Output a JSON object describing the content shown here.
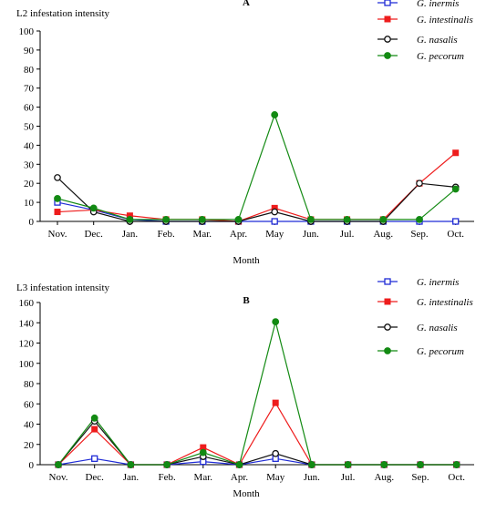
{
  "chart_data": [
    {
      "type": "line",
      "panel_label": "A",
      "ylabel": "L2 infestation intensity",
      "xlabel": "Month",
      "categories": [
        "Nov.",
        "Dec.",
        "Jan.",
        "Feb.",
        "Mar.",
        "Apr.",
        "May",
        "Jun.",
        "Jul.",
        "Aug.",
        "Sep.",
        "Oct."
      ],
      "ylim": [
        0,
        100
      ],
      "yticks": [
        0,
        10,
        20,
        30,
        40,
        50,
        60,
        70,
        80,
        90,
        100
      ],
      "legend_position": "top-right",
      "series": [
        {
          "name": "G. inermis",
          "color": "#1f2bd6",
          "marker": "open-square",
          "values": [
            10,
            6,
            1,
            0,
            0,
            0,
            0,
            0,
            0,
            0,
            0,
            0
          ]
        },
        {
          "name": "G. intestinalis",
          "color": "#ee1c1c",
          "marker": "filled-square",
          "values": [
            5,
            6,
            3,
            1,
            1,
            0,
            7,
            1,
            1,
            1,
            20,
            36
          ]
        },
        {
          "name": "G. nasalis",
          "color": "#111111",
          "marker": "open-circle",
          "values": [
            23,
            5,
            0,
            0,
            0,
            0,
            5,
            0,
            0,
            0,
            20,
            18
          ]
        },
        {
          "name": "G. pecorum",
          "color": "#138a13",
          "marker": "filled-circle",
          "values": [
            12,
            7,
            1,
            1,
            1,
            1,
            56,
            1,
            1,
            1,
            1,
            17
          ]
        }
      ]
    },
    {
      "type": "line",
      "panel_label": "B",
      "ylabel": "L3 infestation intensity",
      "xlabel": "Month",
      "categories": [
        "Nov.",
        "Dec.",
        "Jan.",
        "Feb.",
        "Mar.",
        "Apr.",
        "May",
        "Jun.",
        "Jul.",
        "Aug.",
        "Sep.",
        "Oct."
      ],
      "ylim": [
        0,
        160
      ],
      "yticks": [
        0,
        20,
        40,
        60,
        80,
        100,
        120,
        140,
        160
      ],
      "legend_position": "top-right",
      "series": [
        {
          "name": "G. inermis",
          "color": "#1f2bd6",
          "marker": "open-square",
          "values": [
            0,
            6,
            0,
            0,
            3,
            0,
            6,
            0,
            0,
            0,
            0,
            0
          ]
        },
        {
          "name": "G. intestinalis",
          "color": "#ee1c1c",
          "marker": "filled-square",
          "values": [
            0,
            35,
            0,
            0,
            17,
            0,
            61,
            0,
            0,
            0,
            0,
            0
          ]
        },
        {
          "name": "G. nasalis",
          "color": "#111111",
          "marker": "open-circle",
          "values": [
            0,
            43,
            0,
            0,
            8,
            0,
            11,
            0,
            0,
            0,
            0,
            0
          ]
        },
        {
          "name": "G. pecorum",
          "color": "#138a13",
          "marker": "filled-circle",
          "values": [
            0,
            46,
            0,
            0,
            12,
            0,
            141,
            0,
            0,
            0,
            0,
            0
          ]
        }
      ]
    }
  ]
}
